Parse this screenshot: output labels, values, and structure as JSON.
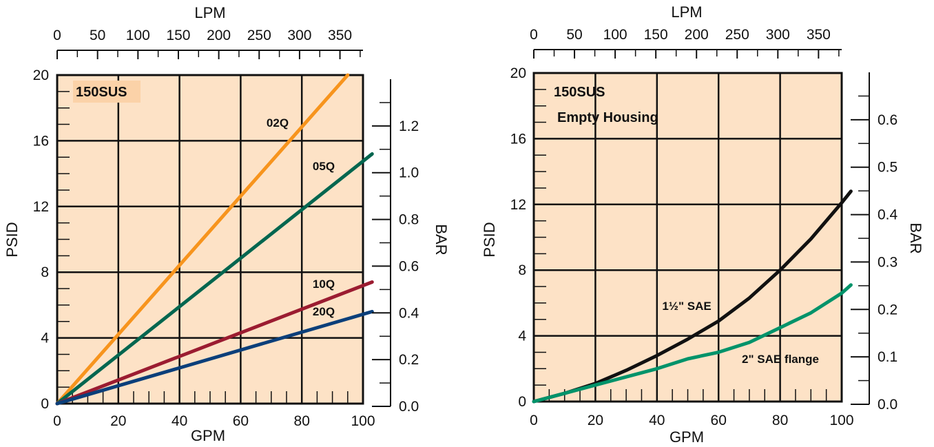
{
  "chart_data": [
    {
      "type": "line",
      "title": "150SUS",
      "subtitle": "",
      "xlabel": "GPM",
      "ylabel": "PSID",
      "x2label": "LPM",
      "y2label": "BAR",
      "xlim": [
        0,
        100
      ],
      "ylim": [
        0,
        20
      ],
      "xticks": [
        "0",
        "20",
        "40",
        "60",
        "80",
        "100"
      ],
      "yticks": [
        "0",
        "4",
        "8",
        "12",
        "16",
        "20"
      ],
      "lpm_ticks": [
        "0",
        "50",
        "100",
        "150",
        "200",
        "250",
        "300",
        "350"
      ],
      "bar_ticks": [
        "0.0",
        "0.2",
        "0.4",
        "0.6",
        "0.8",
        "1.0",
        "1.2"
      ],
      "grid": true,
      "series": [
        {
          "name": "02Q",
          "color": "#f7941d",
          "x": [
            0,
            95
          ],
          "y": [
            0,
            20
          ]
        },
        {
          "name": "05Q",
          "color": "#00664f",
          "x": [
            0,
            103
          ],
          "y": [
            0,
            15.2
          ]
        },
        {
          "name": "10Q",
          "color": "#9b1c31",
          "x": [
            0,
            103
          ],
          "y": [
            0,
            7.4
          ]
        },
        {
          "name": "20Q",
          "color": "#0b3f7a",
          "x": [
            0,
            103
          ],
          "y": [
            0,
            5.6
          ]
        }
      ]
    },
    {
      "type": "line",
      "title": "150SUS",
      "subtitle": "Empty Housing",
      "xlabel": "GPM",
      "ylabel": "PSID",
      "x2label": "LPM",
      "y2label": "BAR",
      "xlim": [
        0,
        100
      ],
      "ylim": [
        0,
        20
      ],
      "xticks": [
        "0",
        "20",
        "40",
        "60",
        "80",
        "100"
      ],
      "yticks": [
        "0",
        "4",
        "8",
        "12",
        "16",
        "20"
      ],
      "lpm_ticks": [
        "0",
        "50",
        "100",
        "150",
        "200",
        "250",
        "300",
        "350"
      ],
      "bar_ticks": [
        "0.0",
        "0.1",
        "0.2",
        "0.3",
        "0.4",
        "0.5",
        "0.6"
      ],
      "grid": true,
      "series": [
        {
          "name": "1½\" SAE",
          "color": "#111111",
          "x": [
            0,
            10,
            20,
            30,
            40,
            50,
            60,
            70,
            80,
            90,
            100,
            103
          ],
          "y": [
            0,
            0.5,
            1.1,
            1.9,
            2.8,
            3.8,
            4.9,
            6.3,
            8.0,
            9.9,
            12.1,
            12.8
          ]
        },
        {
          "name": "2\" SAE flange",
          "color": "#00936a",
          "x": [
            0,
            10,
            20,
            30,
            40,
            50,
            60,
            70,
            80,
            90,
            100,
            103
          ],
          "y": [
            0,
            0.5,
            1.0,
            1.5,
            2.0,
            2.6,
            3.0,
            3.6,
            4.5,
            5.4,
            6.6,
            7.1
          ]
        }
      ]
    }
  ]
}
